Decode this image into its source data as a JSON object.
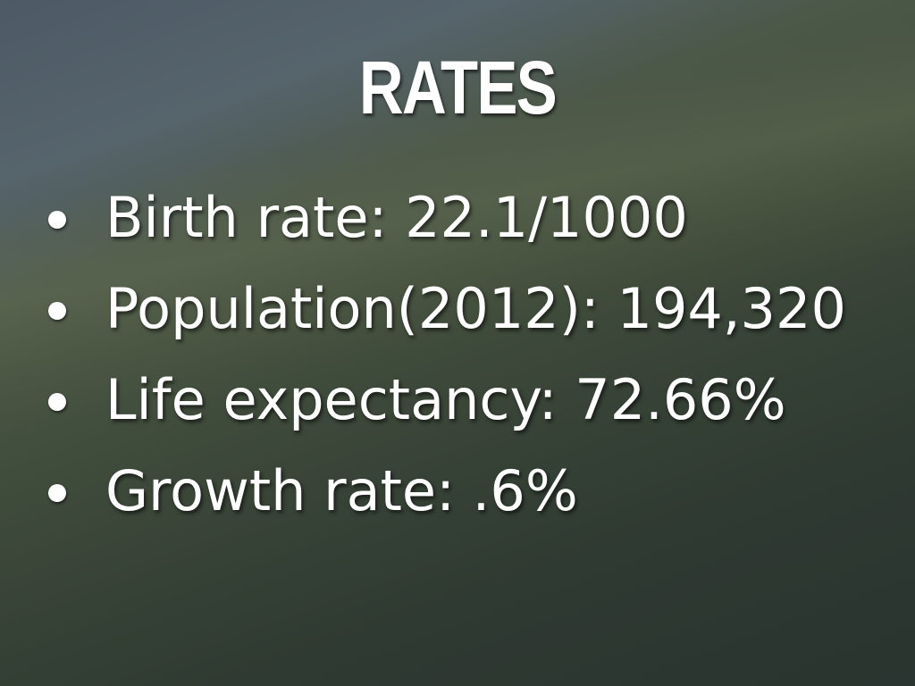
{
  "slide": {
    "title": "RATES",
    "bullets": [
      "Birth rate: 22.1/1000",
      "Population(2012): 194,320",
      "Life expectancy: 72.66%",
      "Growth rate: .6%"
    ]
  }
}
